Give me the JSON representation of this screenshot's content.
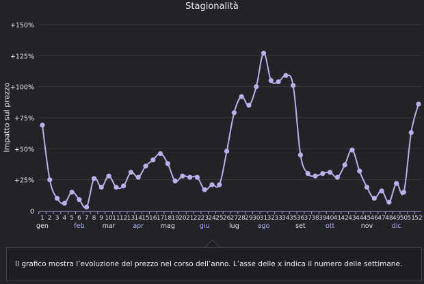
{
  "chart_data": {
    "type": "line",
    "title": "Stagionalità",
    "xlabel": "",
    "ylabel": "Impatto sul prezzo",
    "ylim": [
      0,
      150
    ],
    "yticks": [
      0,
      25,
      50,
      75,
      100,
      125,
      150
    ],
    "ytick_labels": [
      "0",
      "+25%",
      "+50%",
      "+75%",
      "+100%",
      "+125%",
      "+150%"
    ],
    "x": [
      1,
      2,
      3,
      4,
      5,
      6,
      7,
      8,
      9,
      10,
      11,
      12,
      13,
      14,
      15,
      16,
      17,
      18,
      19,
      20,
      21,
      22,
      23,
      24,
      25,
      26,
      27,
      28,
      29,
      30,
      31,
      32,
      33,
      34,
      35,
      36,
      37,
      38,
      39,
      40,
      41,
      42,
      43,
      44,
      45,
      46,
      47,
      48,
      49,
      50,
      51,
      52
    ],
    "values": [
      69,
      25,
      10,
      6,
      15,
      9,
      3,
      26,
      19,
      28,
      19,
      20,
      31,
      27,
      36,
      41,
      46,
      38,
      24,
      28,
      27,
      27,
      17,
      21,
      21,
      48,
      79,
      92,
      85,
      100,
      127,
      105,
      104,
      109,
      101,
      45,
      30,
      28,
      30,
      31,
      27,
      37,
      49,
      32,
      19,
      10,
      16,
      7,
      22,
      15,
      63,
      86
    ],
    "months": [
      {
        "label": "gen",
        "week": 1
      },
      {
        "label": "feb",
        "week": 6
      },
      {
        "label": "mar",
        "week": 10
      },
      {
        "label": "apr",
        "week": 14
      },
      {
        "label": "mag",
        "week": 18
      },
      {
        "label": "giu",
        "week": 23
      },
      {
        "label": "lug",
        "week": 27
      },
      {
        "label": "ago",
        "week": 31
      },
      {
        "label": "set",
        "week": 36
      },
      {
        "label": "ott",
        "week": 40
      },
      {
        "label": "nov",
        "week": 45
      },
      {
        "label": "dic",
        "week": 49
      }
    ],
    "grid": true,
    "series_color": "#b9b0ec",
    "month_colors": [
      "#e6e6ea",
      "#a9b2ff"
    ]
  },
  "caption": "Il grafico mostra l’evoluzione del prezzo nel corso dell’anno. L’asse delle x indica il numero delle settimane."
}
